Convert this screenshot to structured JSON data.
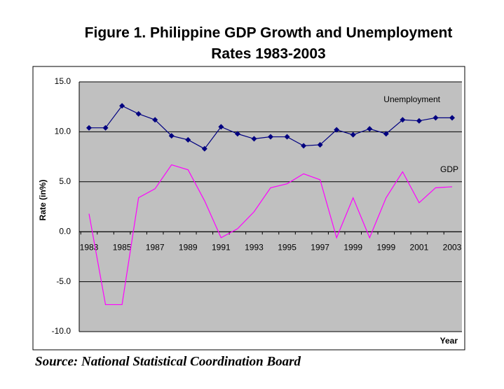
{
  "chart_data": {
    "type": "line",
    "title": [
      "Figure 1. Philippine GDP Growth and Unemployment",
      "Rates 1983-2003"
    ],
    "ylabel": "Rate (in%)",
    "xlabel": "Year",
    "source": "Source: National Statistical Coordination Board",
    "categories": [
      "1983",
      null,
      "1985",
      null,
      "1987",
      null,
      "1989",
      null,
      "1991",
      null,
      "1993",
      null,
      "1995",
      null,
      "1997",
      null,
      "1999",
      null,
      "1999",
      null,
      "2001",
      null,
      "2003"
    ],
    "series": [
      {
        "name": "Unemployment",
        "color": "#000080",
        "marker": "diamond",
        "values": [
          10.4,
          10.4,
          12.6,
          11.8,
          11.2,
          9.6,
          9.2,
          8.3,
          10.5,
          9.8,
          9.3,
          9.5,
          9.5,
          8.6,
          8.7,
          10.2,
          9.7,
          10.3,
          9.8,
          11.2,
          11.1,
          11.4,
          11.4
        ]
      },
      {
        "name": "GDP",
        "color": "#ff00ff",
        "marker": null,
        "values": [
          1.8,
          -7.3,
          -7.3,
          3.4,
          4.3,
          6.7,
          6.2,
          3.1,
          -0.6,
          0.3,
          2.0,
          4.4,
          4.8,
          5.8,
          5.2,
          -0.6,
          3.4,
          -0.6,
          3.4,
          6.0,
          2.9,
          4.4,
          4.5
        ]
      }
    ],
    "ylim": [
      -10,
      15
    ],
    "yticks": [
      {
        "value": -10,
        "label": "-10.0"
      },
      {
        "value": -5,
        "label": "-5.0"
      },
      {
        "value": 0,
        "label": "0.0"
      },
      {
        "value": 5,
        "label": "5.0"
      },
      {
        "value": 10,
        "label": "10.0"
      },
      {
        "value": 15,
        "label": "15.0"
      }
    ],
    "grid": true
  }
}
